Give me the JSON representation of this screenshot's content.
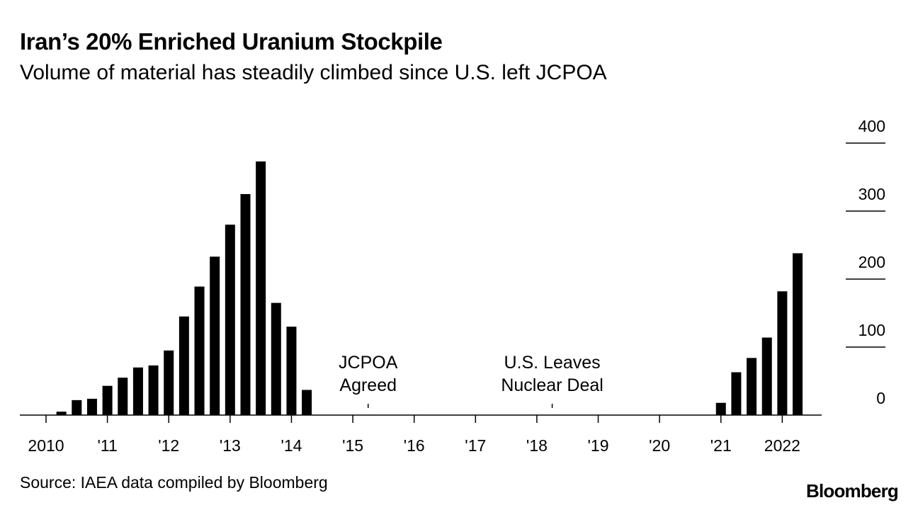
{
  "title": "Iran’s 20% Enriched Uranium Stockpile",
  "subtitle": "Volume of material has steadily climbed since U.S. left JCPOA",
  "source": "Source: IAEA data compiled by Bloomberg",
  "brand": "Bloomberg",
  "chart_data": {
    "type": "bar",
    "grid": false,
    "xlabel": "",
    "ylabel": "",
    "ylim": [
      0,
      400
    ],
    "yticks": [
      0,
      100,
      200,
      300,
      400
    ],
    "ytick_labels": [
      "0",
      "100",
      "200",
      "300",
      "400"
    ],
    "y_axis_side": "right",
    "bar_color": "#000000",
    "xlim": [
      2010.0,
      2022.85
    ],
    "x_ticks": [
      2010,
      2011,
      2012,
      2013,
      2014,
      2015,
      2016,
      2017,
      2018,
      2019,
      2020,
      2021,
      2022
    ],
    "x_tick_labels": [
      "2010",
      "'11",
      "'12",
      "'13",
      "'14",
      "'15",
      "'16",
      "'17",
      "'18",
      "'19",
      "'20",
      "'21",
      "2022"
    ],
    "x": [
      2010.25,
      2010.5,
      2010.75,
      2011.0,
      2011.25,
      2011.5,
      2011.75,
      2012.0,
      2012.25,
      2012.5,
      2012.75,
      2013.0,
      2013.25,
      2013.5,
      2013.75,
      2014.0,
      2014.25,
      2014.5,
      2014.75,
      2015.0,
      2015.25,
      2015.5,
      2015.75,
      2016.0,
      2016.25,
      2016.5,
      2016.75,
      2017.0,
      2017.25,
      2017.5,
      2017.75,
      2018.0,
      2018.25,
      2018.5,
      2018.75,
      2019.0,
      2019.25,
      2019.5,
      2019.75,
      2020.0,
      2020.25,
      2020.5,
      2020.75,
      2021.0,
      2021.25,
      2021.5,
      2021.75,
      2022.0,
      2022.25
    ],
    "values": [
      5,
      22,
      24,
      43,
      55,
      70,
      73,
      95,
      145,
      189,
      233,
      280,
      325,
      373,
      165,
      130,
      37,
      0,
      0,
      0,
      0,
      0,
      0,
      0,
      0,
      0,
      0,
      0,
      0,
      0,
      0,
      0,
      0,
      0,
      0,
      0,
      0,
      0,
      0,
      0,
      0,
      0,
      0,
      18,
      63,
      84,
      114,
      182,
      238
    ],
    "annotations": [
      {
        "x": 2015.25,
        "lines": [
          "JCPOA",
          "Agreed"
        ]
      },
      {
        "x": 2018.25,
        "lines": [
          "U.S. Leaves",
          "Nuclear Deal"
        ]
      }
    ]
  }
}
